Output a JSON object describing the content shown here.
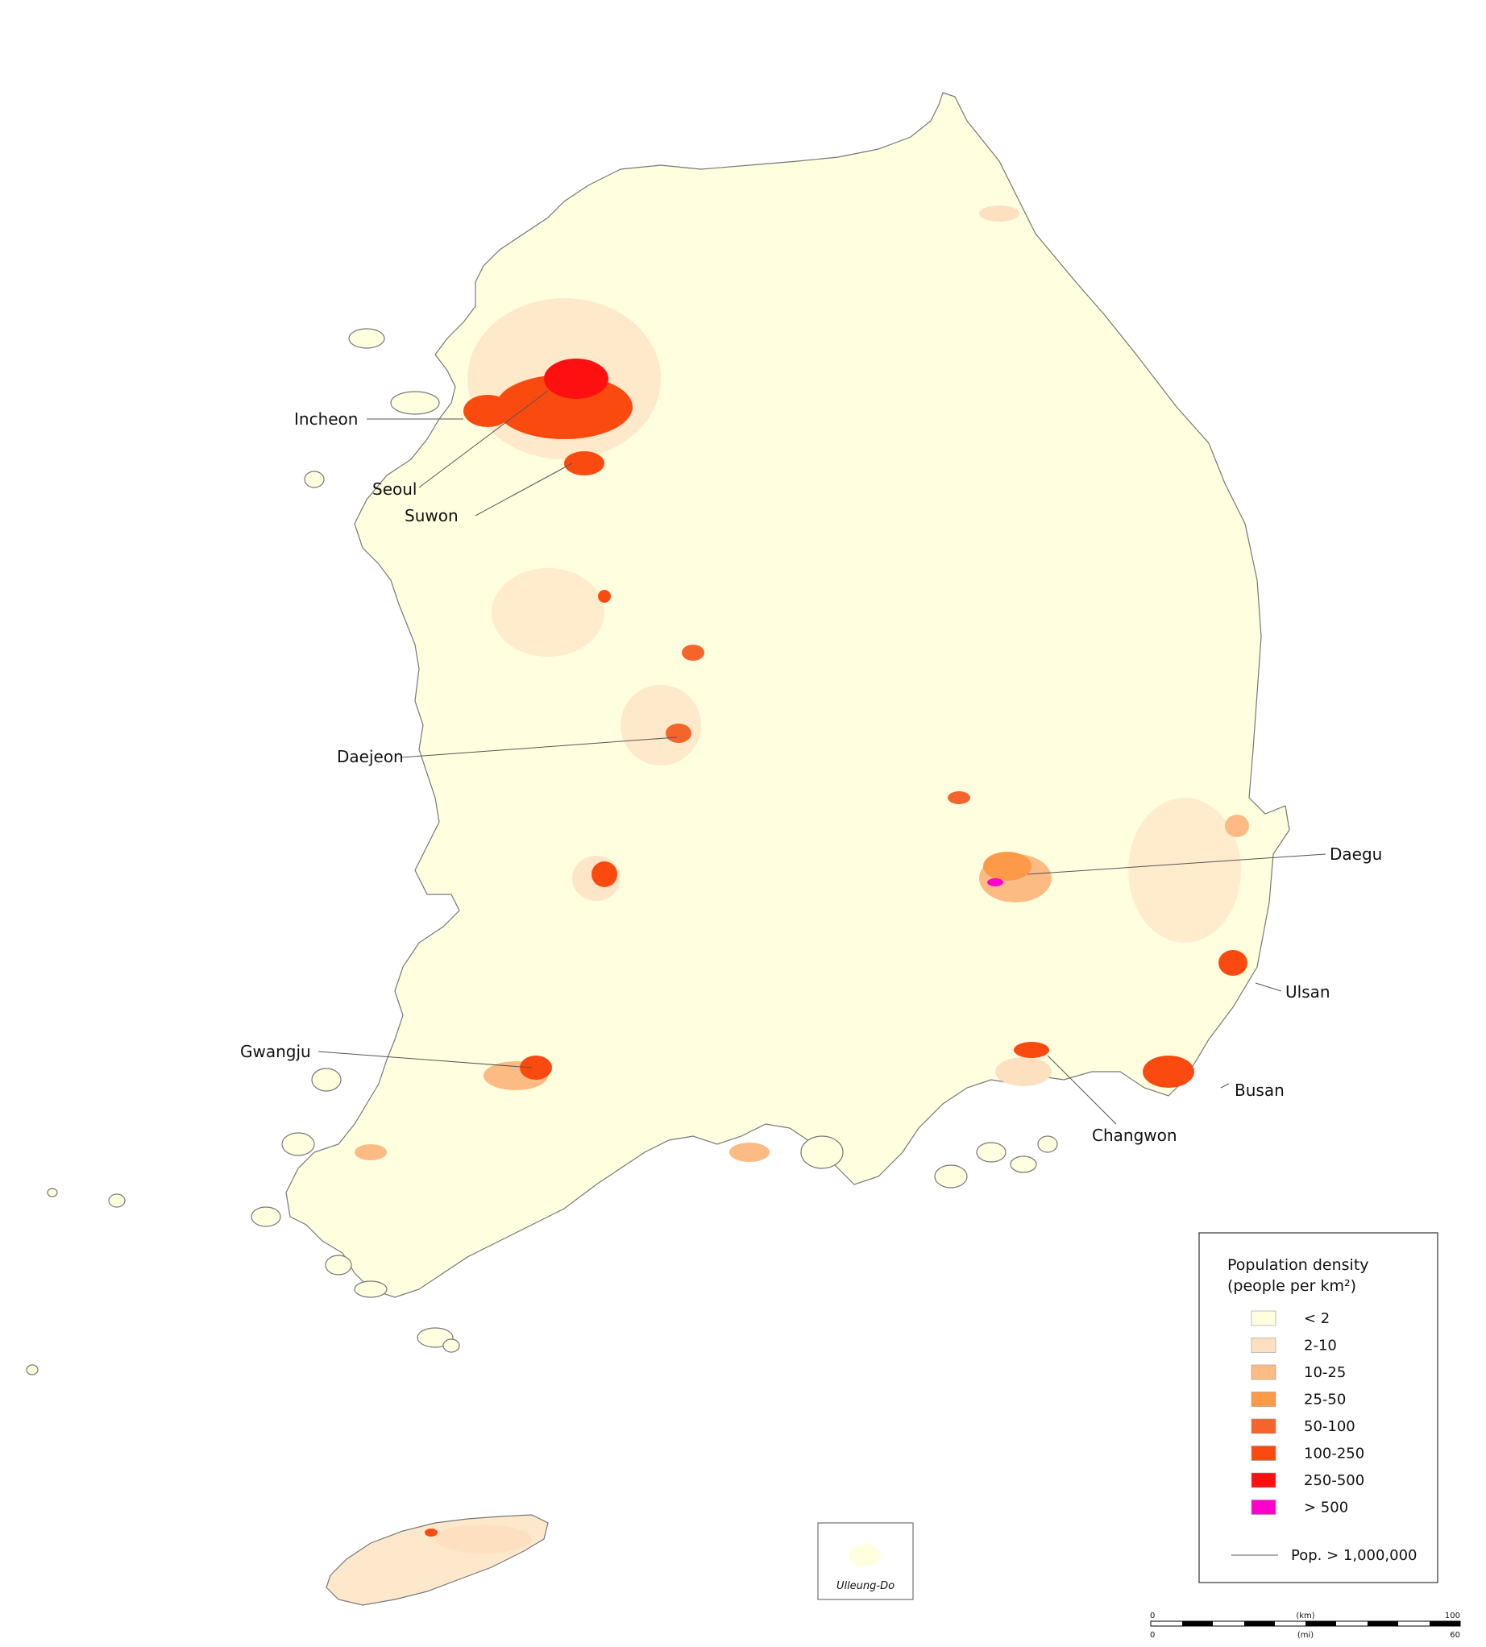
{
  "legend": {
    "title_line1": "Population density",
    "title_line2": "(people per km²)",
    "classes": [
      {
        "label": "< 2",
        "color": "#ffffe0"
      },
      {
        "label": "2-10",
        "color": "#fde0c0"
      },
      {
        "label": "10-25",
        "color": "#fdbb84"
      },
      {
        "label": "25-50",
        "color": "#fc9a4a"
      },
      {
        "label": "50-100",
        "color": "#f5642a"
      },
      {
        "label": "100-250",
        "color": "#fb4a10"
      },
      {
        "label": "250-500",
        "color": "#ff1010"
      },
      {
        "label": "> 500",
        "color": "#ff00cc"
      }
    ],
    "line_label": "Pop. > 1,000,000"
  },
  "cities": [
    {
      "name": "Incheon"
    },
    {
      "name": "Seoul"
    },
    {
      "name": "Suwon"
    },
    {
      "name": "Daejeon"
    },
    {
      "name": "Daegu"
    },
    {
      "name": "Ulsan"
    },
    {
      "name": "Busan"
    },
    {
      "name": "Changwon"
    },
    {
      "name": "Gwangju"
    }
  ],
  "inset": {
    "label": "Ulleung-Do"
  },
  "scale": {
    "km_start": "0",
    "km_unit": "(km)",
    "km_end": "100",
    "mi_start": "0",
    "mi_unit": "(mi)",
    "mi_end": "60"
  }
}
